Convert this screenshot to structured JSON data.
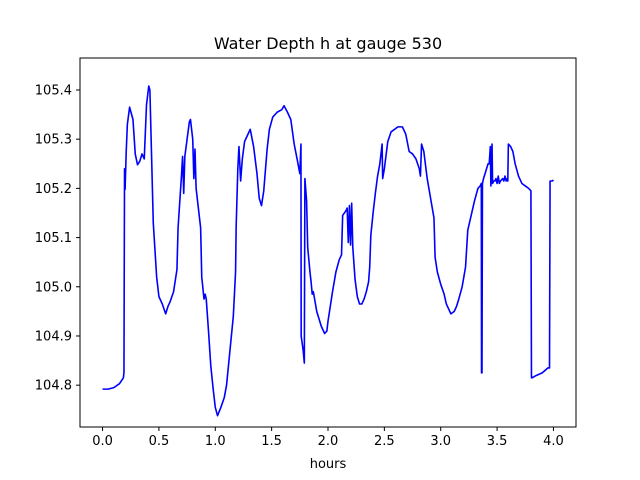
{
  "chart_data": {
    "type": "line",
    "title": "Water Depth h at gauge 530",
    "xlabel": "hours",
    "ylabel": "",
    "xlim": [
      -0.2,
      4.2
    ],
    "ylim": [
      104.715,
      105.465
    ],
    "x_ticks": [
      "0.0",
      "0.5",
      "1.0",
      "1.5",
      "2.0",
      "2.5",
      "3.0",
      "3.5",
      "4.0"
    ],
    "y_ticks": [
      "104.8",
      "104.9",
      "105.0",
      "105.1",
      "105.2",
      "105.3",
      "105.4"
    ],
    "grid": false,
    "series": [
      {
        "color": "#0000ff",
        "points": [
          [
            0.0,
            104.792
          ],
          [
            0.05,
            104.792
          ],
          [
            0.1,
            104.795
          ],
          [
            0.15,
            104.803
          ],
          [
            0.185,
            104.815
          ],
          [
            0.19,
            104.826
          ],
          [
            0.195,
            105.24
          ],
          [
            0.2,
            105.198
          ],
          [
            0.21,
            105.275
          ],
          [
            0.22,
            105.33
          ],
          [
            0.24,
            105.365
          ],
          [
            0.27,
            105.34
          ],
          [
            0.29,
            105.27
          ],
          [
            0.31,
            105.248
          ],
          [
            0.33,
            105.255
          ],
          [
            0.35,
            105.27
          ],
          [
            0.37,
            105.26
          ],
          [
            0.39,
            105.37
          ],
          [
            0.41,
            105.408
          ],
          [
            0.42,
            105.4
          ],
          [
            0.45,
            105.13
          ],
          [
            0.48,
            105.02
          ],
          [
            0.5,
            104.98
          ],
          [
            0.53,
            104.965
          ],
          [
            0.56,
            104.945
          ],
          [
            0.58,
            104.96
          ],
          [
            0.6,
            104.97
          ],
          [
            0.63,
            104.99
          ],
          [
            0.66,
            105.035
          ],
          [
            0.67,
            105.12
          ],
          [
            0.7,
            105.225
          ],
          [
            0.71,
            105.265
          ],
          [
            0.72,
            105.19
          ],
          [
            0.73,
            105.265
          ],
          [
            0.75,
            105.3
          ],
          [
            0.77,
            105.335
          ],
          [
            0.78,
            105.34
          ],
          [
            0.8,
            105.3
          ],
          [
            0.81,
            105.22
          ],
          [
            0.82,
            105.28
          ],
          [
            0.83,
            105.2
          ],
          [
            0.87,
            105.12
          ],
          [
            0.88,
            105.02
          ],
          [
            0.9,
            104.975
          ],
          [
            0.91,
            104.985
          ],
          [
            0.92,
            104.975
          ],
          [
            0.94,
            104.91
          ],
          [
            0.96,
            104.84
          ],
          [
            0.98,
            104.795
          ],
          [
            1.0,
            104.755
          ],
          [
            1.02,
            104.738
          ],
          [
            1.05,
            104.755
          ],
          [
            1.08,
            104.775
          ],
          [
            1.1,
            104.8
          ],
          [
            1.13,
            104.87
          ],
          [
            1.16,
            104.94
          ],
          [
            1.17,
            104.985
          ],
          [
            1.18,
            105.03
          ],
          [
            1.185,
            105.12
          ],
          [
            1.2,
            105.24
          ],
          [
            1.21,
            105.285
          ],
          [
            1.225,
            105.215
          ],
          [
            1.24,
            105.26
          ],
          [
            1.26,
            105.295
          ],
          [
            1.29,
            105.31
          ],
          [
            1.31,
            105.32
          ],
          [
            1.34,
            105.285
          ],
          [
            1.37,
            105.23
          ],
          [
            1.39,
            105.18
          ],
          [
            1.41,
            105.165
          ],
          [
            1.43,
            105.195
          ],
          [
            1.46,
            105.28
          ],
          [
            1.48,
            105.32
          ],
          [
            1.51,
            105.345
          ],
          [
            1.55,
            105.355
          ],
          [
            1.59,
            105.36
          ],
          [
            1.61,
            105.368
          ],
          [
            1.64,
            105.355
          ],
          [
            1.67,
            105.34
          ],
          [
            1.7,
            105.29
          ],
          [
            1.73,
            105.255
          ],
          [
            1.75,
            105.23
          ],
          [
            1.76,
            105.29
          ],
          [
            1.762,
            104.9
          ],
          [
            1.78,
            104.87
          ],
          [
            1.79,
            104.845
          ],
          [
            1.795,
            105.22
          ],
          [
            1.81,
            105.175
          ],
          [
            1.82,
            105.08
          ],
          [
            1.84,
            105.03
          ],
          [
            1.85,
            105.01
          ],
          [
            1.86,
            104.985
          ],
          [
            1.87,
            104.99
          ],
          [
            1.9,
            104.95
          ],
          [
            1.92,
            104.935
          ],
          [
            1.94,
            104.92
          ],
          [
            1.97,
            104.905
          ],
          [
            1.99,
            104.91
          ],
          [
            2.0,
            104.93
          ],
          [
            2.04,
            104.99
          ],
          [
            2.07,
            105.03
          ],
          [
            2.1,
            105.055
          ],
          [
            2.12,
            105.065
          ],
          [
            2.13,
            105.145
          ],
          [
            2.16,
            105.155
          ],
          [
            2.17,
            105.16
          ],
          [
            2.18,
            105.09
          ],
          [
            2.19,
            105.165
          ],
          [
            2.2,
            105.085
          ],
          [
            2.21,
            105.17
          ],
          [
            2.22,
            105.08
          ],
          [
            2.24,
            105.015
          ],
          [
            2.26,
            104.98
          ],
          [
            2.28,
            104.965
          ],
          [
            2.3,
            104.965
          ],
          [
            2.32,
            104.975
          ],
          [
            2.34,
            104.99
          ],
          [
            2.36,
            105.01
          ],
          [
            2.37,
            105.04
          ],
          [
            2.38,
            105.105
          ],
          [
            2.4,
            105.15
          ],
          [
            2.42,
            105.19
          ],
          [
            2.44,
            105.225
          ],
          [
            2.46,
            105.25
          ],
          [
            2.48,
            105.29
          ],
          [
            2.485,
            105.22
          ],
          [
            2.5,
            105.24
          ],
          [
            2.53,
            105.295
          ],
          [
            2.56,
            105.315
          ],
          [
            2.59,
            105.32
          ],
          [
            2.62,
            105.325
          ],
          [
            2.66,
            105.325
          ],
          [
            2.69,
            105.31
          ],
          [
            2.72,
            105.275
          ],
          [
            2.75,
            105.27
          ],
          [
            2.78,
            105.26
          ],
          [
            2.81,
            105.24
          ],
          [
            2.82,
            105.225
          ],
          [
            2.83,
            105.29
          ],
          [
            2.85,
            105.275
          ],
          [
            2.88,
            105.22
          ],
          [
            2.91,
            105.18
          ],
          [
            2.94,
            105.14
          ],
          [
            2.95,
            105.06
          ],
          [
            2.97,
            105.03
          ],
          [
            3.0,
            105.005
          ],
          [
            3.03,
            104.985
          ],
          [
            3.05,
            104.965
          ],
          [
            3.07,
            104.955
          ],
          [
            3.09,
            104.945
          ],
          [
            3.12,
            104.95
          ],
          [
            3.14,
            104.96
          ],
          [
            3.16,
            104.975
          ],
          [
            3.19,
            105.0
          ],
          [
            3.22,
            105.04
          ],
          [
            3.24,
            105.115
          ],
          [
            3.27,
            105.145
          ],
          [
            3.3,
            105.175
          ],
          [
            3.33,
            105.2
          ],
          [
            3.35,
            105.205
          ],
          [
            3.36,
            105.21
          ],
          [
            3.362,
            104.825
          ],
          [
            3.366,
            104.825
          ],
          [
            3.37,
            105.21
          ],
          [
            3.38,
            105.22
          ],
          [
            3.4,
            105.235
          ],
          [
            3.42,
            105.25
          ],
          [
            3.43,
            105.25
          ],
          [
            3.44,
            105.285
          ],
          [
            3.445,
            105.205
          ],
          [
            3.455,
            105.29
          ],
          [
            3.46,
            105.21
          ],
          [
            3.47,
            105.215
          ],
          [
            3.48,
            105.215
          ],
          [
            3.49,
            105.22
          ],
          [
            3.5,
            105.21
          ],
          [
            3.51,
            105.225
          ],
          [
            3.52,
            105.21
          ],
          [
            3.53,
            105.215
          ],
          [
            3.55,
            105.22
          ],
          [
            3.56,
            105.215
          ],
          [
            3.57,
            105.225
          ],
          [
            3.58,
            105.215
          ],
          [
            3.59,
            105.22
          ],
          [
            3.595,
            105.215
          ],
          [
            3.6,
            105.29
          ],
          [
            3.62,
            105.285
          ],
          [
            3.64,
            105.275
          ],
          [
            3.66,
            105.25
          ],
          [
            3.69,
            105.225
          ],
          [
            3.72,
            105.21
          ],
          [
            3.75,
            105.205
          ],
          [
            3.78,
            105.2
          ],
          [
            3.8,
            105.195
          ],
          [
            3.805,
            104.815
          ],
          [
            3.81,
            104.815
          ],
          [
            3.85,
            104.82
          ],
          [
            3.9,
            104.825
          ],
          [
            3.95,
            104.835
          ],
          [
            3.965,
            104.835
          ],
          [
            3.97,
            105.215
          ],
          [
            3.99,
            105.215
          ],
          [
            4.0,
            105.217
          ]
        ]
      }
    ]
  }
}
